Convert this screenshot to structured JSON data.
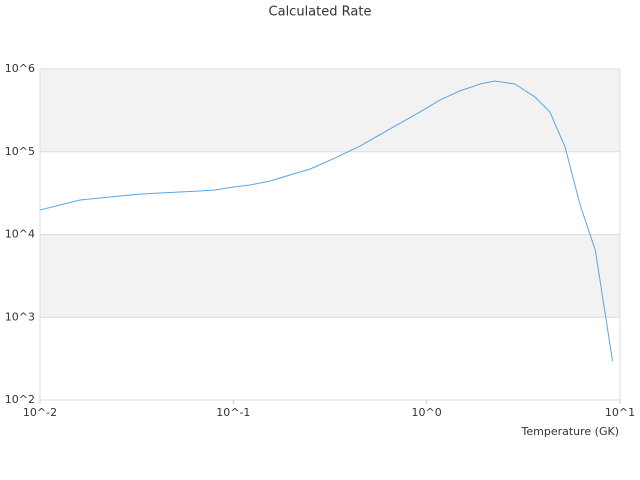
{
  "chart_data": {
    "type": "line",
    "title": "Calculated Rate",
    "x_label": "Temperature (GK)",
    "x": [
      0.01,
      0.0127,
      0.0161,
      0.0204,
      0.0259,
      0.0329,
      0.0417,
      0.0529,
      0.0671,
      0.0803,
      0.1,
      0.122,
      0.155,
      0.196,
      0.25,
      0.335,
      0.452,
      0.644,
      0.922,
      1.17,
      1.48,
      1.89,
      2.25,
      2.86,
      3.63,
      4.34,
      5.2,
      6.22,
      7.45,
      9.15
    ],
    "series": [
      {
        "color": "#5aa6e3",
        "values": [
          19800,
          22700,
          26100,
          27600,
          29200,
          30800,
          31700,
          32600,
          33600,
          34500,
          37500,
          39600,
          44300,
          52400,
          61900,
          84000,
          117000,
          188000,
          302000,
          422000,
          542000,
          659000,
          716000,
          659000,
          459000,
          302000,
          114000,
          22700,
          6500,
          296
        ]
      }
    ],
    "xlim": [
      0.01,
      10
    ],
    "ylim": [
      100,
      1000000
    ],
    "xticks": [
      {
        "value": 0.01,
        "label": "10^-2"
      },
      {
        "value": 0.1,
        "label": "10^-1"
      },
      {
        "value": 1,
        "label": "10^0"
      },
      {
        "value": 10,
        "label": "10^1"
      }
    ],
    "yticks": [
      {
        "value": 100,
        "label": "10^2"
      },
      {
        "value": 1000,
        "label": "10^3"
      },
      {
        "value": 10000,
        "label": "10^4"
      },
      {
        "value": 100000,
        "label": "10^5"
      },
      {
        "value": 1000000,
        "label": "10^6"
      }
    ],
    "xscale": "log",
    "yscale": "log",
    "grid": true
  }
}
